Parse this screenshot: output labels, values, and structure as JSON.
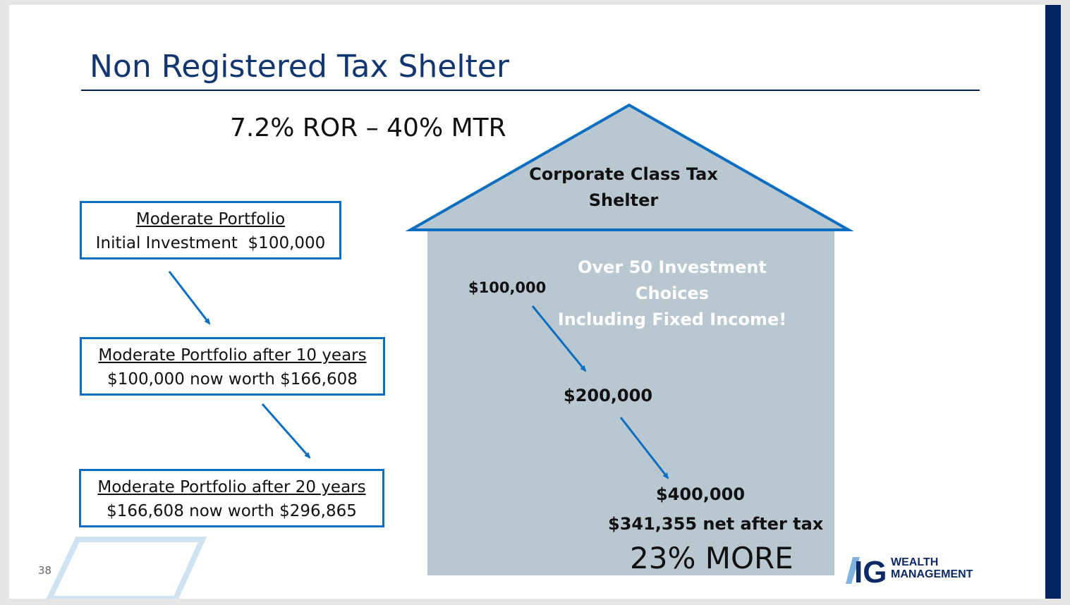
{
  "slide": {
    "title": "Non Registered Tax Shelter",
    "subtitle": "7.2% ROR – 40% MTR",
    "page_number": "38"
  },
  "left_boxes": [
    {
      "heading": "Moderate Portfolio",
      "detail": "Initial Investment  $100,000"
    },
    {
      "heading": "Moderate Portfolio after 10 years",
      "detail": "$100,000 now worth $166,608"
    },
    {
      "heading": "Moderate Portfolio after 20 years",
      "detail": "$166,608 now worth $296,865"
    }
  ],
  "house": {
    "roof_title_line1": "Corporate Class Tax",
    "roof_title_line2": "Shelter",
    "note_line1": "Over 50 Investment Choices",
    "note_line2": "Including Fixed Income!",
    "amounts": [
      "$100,000",
      "$200,000",
      "$400,000"
    ],
    "net_after_tax": "$341,355 net after tax",
    "result": "23% MORE"
  },
  "logo": {
    "mark": "IG",
    "line1": "WEALTH",
    "line2": "MANAGEMENT"
  },
  "colors": {
    "title_blue": "#123670",
    "navy": "#00245d",
    "box_border_blue": "#0c6ec0",
    "house_fill": "#b8c7d0",
    "arrow_blue": "#0c6ec0"
  }
}
